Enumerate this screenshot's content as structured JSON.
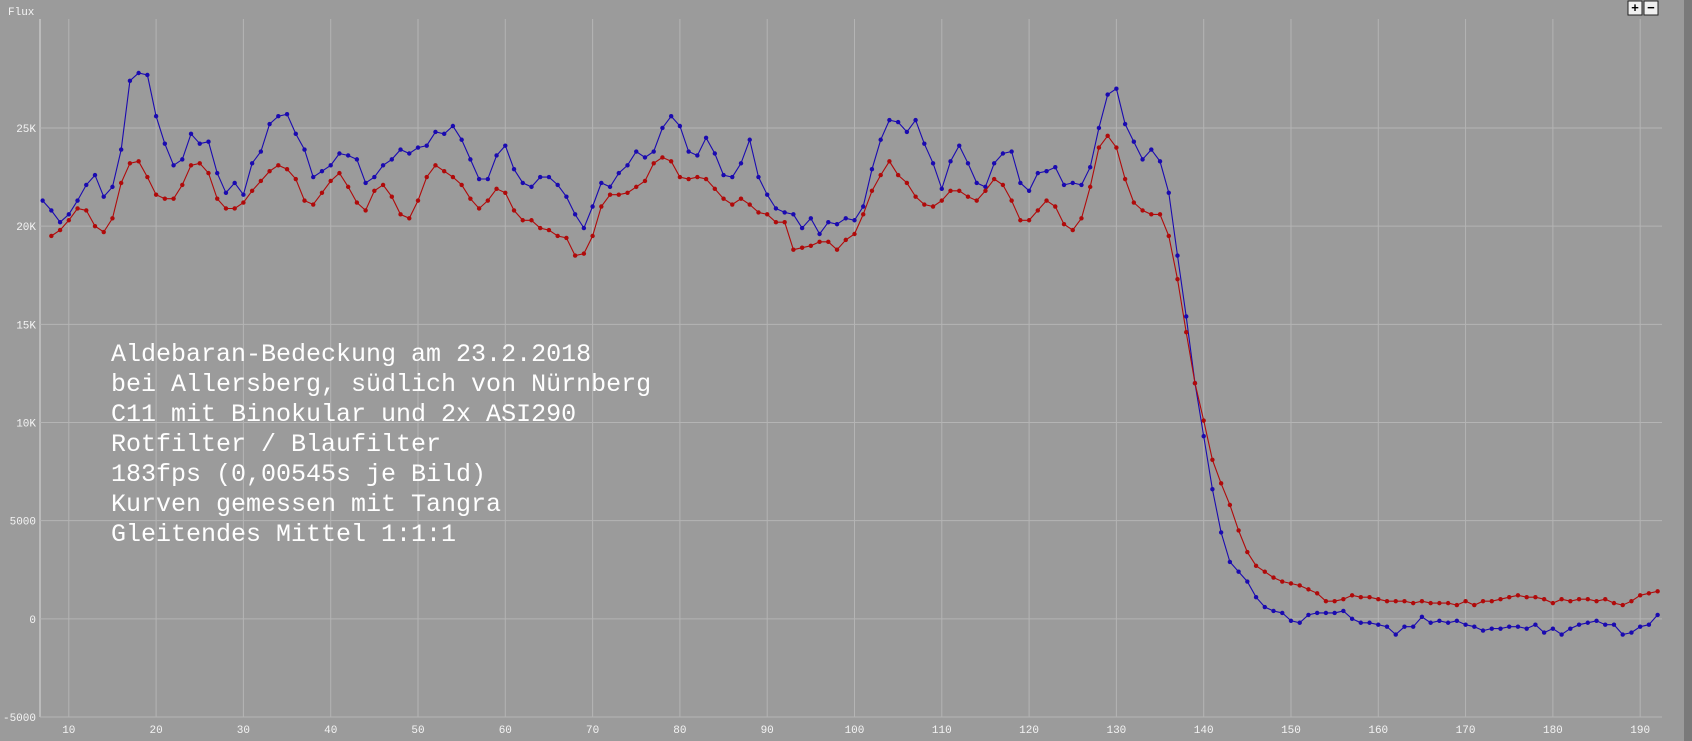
{
  "chart_data": {
    "type": "line",
    "ylabel": "Flux",
    "annotation": [
      "Aldebaran-Bedeckung am 23.2.2018",
      "bei Allersberg, südlich von Nürnberg",
      "C11 mit Binokular und 2x ASI290",
      "Rotfilter / Blaufilter",
      "183fps (0,00545s je Bild)",
      "Kurven gemessen mit Tangra",
      "Gleitendes Mittel 1:1:1"
    ],
    "buttons": [
      "+",
      "−"
    ],
    "x": [
      7,
      8,
      9,
      10,
      11,
      12,
      13,
      14,
      15,
      16,
      17,
      18,
      19,
      20,
      21,
      22,
      23,
      24,
      25,
      26,
      27,
      28,
      29,
      30,
      31,
      32,
      33,
      34,
      35,
      36,
      37,
      38,
      39,
      40,
      41,
      42,
      43,
      44,
      45,
      46,
      47,
      48,
      49,
      50,
      51,
      52,
      53,
      54,
      55,
      56,
      57,
      58,
      59,
      60,
      61,
      62,
      63,
      64,
      65,
      66,
      67,
      68,
      69,
      70,
      71,
      72,
      73,
      74,
      75,
      76,
      77,
      78,
      79,
      80,
      81,
      82,
      83,
      84,
      85,
      86,
      87,
      88,
      89,
      90,
      91,
      92,
      93,
      94,
      95,
      96,
      97,
      98,
      99,
      100,
      101,
      102,
      103,
      104,
      105,
      106,
      107,
      108,
      109,
      110,
      111,
      112,
      113,
      114,
      115,
      116,
      117,
      118,
      119,
      120,
      121,
      122,
      123,
      124,
      125,
      126,
      127,
      128,
      129,
      130,
      131,
      132,
      133,
      134,
      135,
      136,
      137,
      138,
      139,
      140,
      141,
      142,
      143,
      144,
      145,
      146,
      147,
      148,
      149,
      150,
      151,
      152,
      153,
      154,
      155,
      156,
      157,
      158,
      159,
      160,
      161,
      162,
      163,
      164,
      165,
      166,
      167,
      168,
      169,
      170,
      171,
      172,
      173,
      174,
      175,
      176,
      177,
      178,
      179,
      180,
      181,
      182,
      183,
      184,
      185,
      186,
      187,
      188,
      189,
      190,
      191,
      192
    ],
    "series": [
      {
        "color": "#1a0ab0",
        "values": [
          21300,
          20800,
          20200,
          20600,
          21300,
          22100,
          22600,
          21500,
          22000,
          23900,
          27400,
          27800,
          27700,
          25600,
          24200,
          23100,
          23400,
          24700,
          24200,
          24300,
          22700,
          21700,
          22200,
          21600,
          23200,
          23800,
          25200,
          25600,
          25700,
          24700,
          23900,
          22500,
          22800,
          23100,
          23700,
          23600,
          23400,
          22200,
          22500,
          23100,
          23400,
          23900,
          23700,
          24000,
          24100,
          24800,
          24700,
          25100,
          24400,
          23400,
          22400,
          22400,
          23600,
          24100,
          22900,
          22200,
          22000,
          22500,
          22500,
          22100,
          21500,
          20600,
          19900,
          21000,
          22200,
          22000,
          22700,
          23100,
          23800,
          23500,
          23800,
          25000,
          25600,
          25100,
          23800,
          23600,
          24500,
          23700,
          22600,
          22500,
          23200,
          24400,
          22500,
          21600,
          20900,
          20700,
          20600,
          19900,
          20400,
          19600,
          20200,
          20100,
          20400,
          20300,
          21000,
          22900,
          24400,
          25400,
          25300,
          24800,
          25400,
          24200,
          23200,
          21900,
          23300,
          24100,
          23200,
          22200,
          22000,
          23200,
          23700,
          23800,
          22200,
          21800,
          22700,
          22800,
          23000,
          22100,
          22200,
          22100,
          23000,
          25000,
          26700,
          27000,
          25200,
          24300,
          23400,
          23900,
          23300,
          21700,
          18500,
          15400,
          12000,
          9300,
          6600,
          4400,
          2900,
          2400,
          1900,
          1100,
          600,
          400,
          300,
          -100,
          -200,
          200,
          300,
          300,
          300,
          400,
          0,
          -200,
          -200,
          -300,
          -400,
          -800,
          -400,
          -400,
          100,
          -200,
          -100,
          -200,
          -100,
          -300,
          -400,
          -600,
          -500,
          -500,
          -400,
          -400,
          -500,
          -300,
          -700,
          -500,
          -800,
          -500,
          -300,
          -200,
          -100,
          -300,
          -300,
          -800,
          -700,
          -400,
          -300,
          200
        ]
      },
      {
        "color": "#b00a0a",
        "values": [
          null,
          19500,
          19800,
          20300,
          20900,
          20800,
          20000,
          19700,
          20400,
          22200,
          23200,
          23300,
          22500,
          21600,
          21400,
          21400,
          22100,
          23100,
          23200,
          22700,
          21400,
          20900,
          20900,
          21200,
          21800,
          22300,
          22800,
          23100,
          22900,
          22400,
          21300,
          21100,
          21700,
          22300,
          22700,
          22000,
          21200,
          20800,
          21800,
          22100,
          21500,
          20600,
          20400,
          21300,
          22500,
          23100,
          22800,
          22500,
          22100,
          21400,
          20900,
          21300,
          21900,
          21700,
          20800,
          20300,
          20300,
          19900,
          19800,
          19500,
          19400,
          18500,
          18600,
          19500,
          21000,
          21600,
          21600,
          21700,
          22000,
          22300,
          23200,
          23500,
          23300,
          22500,
          22400,
          22500,
          22400,
          21900,
          21400,
          21100,
          21400,
          21100,
          20700,
          20600,
          20200,
          20200,
          18800,
          18900,
          19000,
          19200,
          19200,
          18800,
          19300,
          19600,
          20600,
          21800,
          22600,
          23300,
          22600,
          22200,
          21500,
          21100,
          21000,
          21300,
          21800,
          21800,
          21500,
          21300,
          21800,
          22400,
          22100,
          21300,
          20300,
          20300,
          20800,
          21300,
          21000,
          20100,
          19800,
          20400,
          22000,
          24000,
          24600,
          24000,
          22400,
          21200,
          20800,
          20600,
          20600,
          19500,
          17300,
          14600,
          12000,
          10100,
          8100,
          6900,
          5800,
          4500,
          3400,
          2700,
          2400,
          2100,
          1900,
          1800,
          1700,
          1500,
          1300,
          900,
          900,
          1000,
          1200,
          1100,
          1100,
          1000,
          900,
          900,
          900,
          800,
          900,
          800,
          800,
          800,
          700,
          900,
          700,
          900,
          900,
          1000,
          1100,
          1200,
          1100,
          1100,
          1000,
          800,
          1000,
          900,
          1000,
          1000,
          900,
          1000,
          800,
          700,
          900,
          1200,
          1300,
          1400
        ]
      }
    ],
    "xlim": [
      6.7,
      192.5
    ],
    "ylim": [
      -5000,
      30550
    ],
    "xticks": [
      10,
      20,
      30,
      40,
      50,
      60,
      70,
      80,
      90,
      100,
      110,
      120,
      130,
      140,
      150,
      160,
      170,
      180,
      190
    ],
    "yticks": [
      {
        "value": -5000,
        "label": "-5000"
      },
      0,
      5000,
      {
        "value": 10000,
        "label": "10K"
      },
      {
        "value": 15000,
        "label": "15K"
      },
      {
        "value": 20000,
        "label": "20K"
      },
      {
        "value": 25000,
        "label": "25K"
      }
    ],
    "grid": true
  }
}
